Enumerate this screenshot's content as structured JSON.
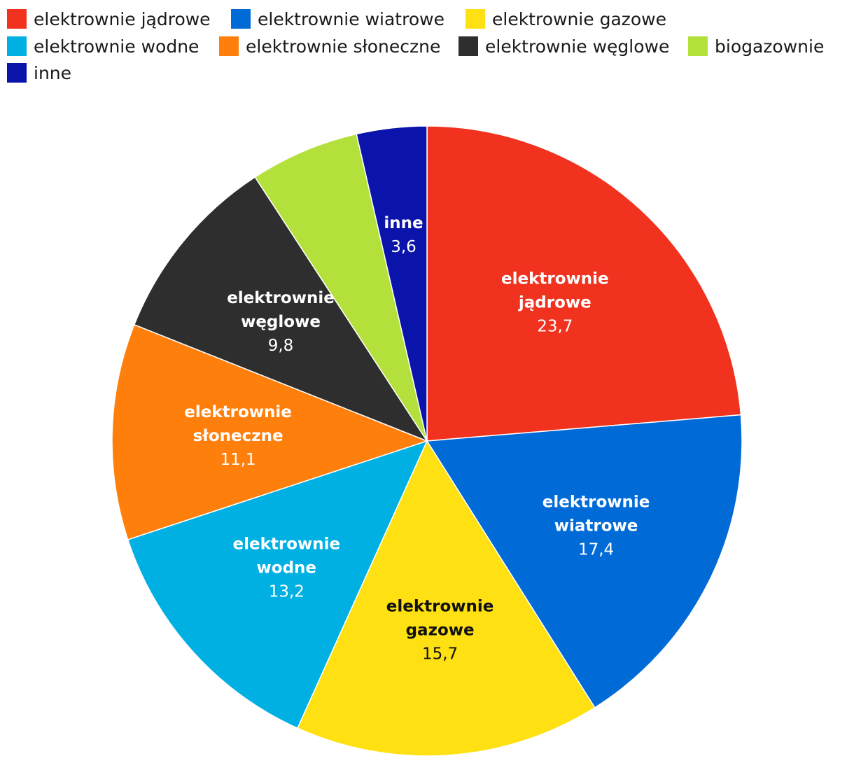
{
  "chart_data": {
    "type": "pie",
    "title": "",
    "legend_position": "top",
    "start_angle": "12 o'clock",
    "direction": "clockwise",
    "slices": [
      {
        "name": "elektrownie jądrowe",
        "label_lines": [
          "elektrownie",
          "jądrowe"
        ],
        "value": 23.7,
        "value_label": "23,7",
        "color": "#f0321e",
        "text_color": "#ffffff"
      },
      {
        "name": "elektrownie wiatrowe",
        "label_lines": [
          "elektrownie",
          "wiatrowe"
        ],
        "value": 17.4,
        "value_label": "17,4",
        "color": "#006bd6",
        "text_color": "#ffffff"
      },
      {
        "name": "elektrownie gazowe",
        "label_lines": [
          "elektrownie",
          "gazowe"
        ],
        "value": 15.7,
        "value_label": "15,7",
        "color": "#ffe012",
        "text_color": "#111111"
      },
      {
        "name": "elektrownie wodne",
        "label_lines": [
          "elektrownie",
          "wodne"
        ],
        "value": 13.2,
        "value_label": "13,2",
        "color": "#00b0e3",
        "text_color": "#ffffff"
      },
      {
        "name": "elektrownie słoneczne",
        "label_lines": [
          "elektrownie",
          "słoneczne"
        ],
        "value": 11.1,
        "value_label": "11,1",
        "color": "#ff7f0c",
        "text_color": "#ffffff"
      },
      {
        "name": "elektrownie węglowe",
        "label_lines": [
          "elektrownie",
          "węglowe"
        ],
        "value": 9.8,
        "value_label": "9,8",
        "color": "#2e2e2e",
        "text_color": "#ffffff"
      },
      {
        "name": "biogazownie",
        "label_lines": [],
        "value": 5.6,
        "value_label": "",
        "color": "#b3e03a",
        "text_color": "#ffffff"
      },
      {
        "name": "inne",
        "label_lines": [
          "inne"
        ],
        "value": 3.6,
        "value_label": "3,6",
        "color": "#0a14aa",
        "text_color": "#ffffff"
      }
    ],
    "legend_order": [
      "elektrownie jądrowe",
      "elektrownie wiatrowe",
      "elektrownie gazowe",
      "elektrownie wodne",
      "elektrownie słoneczne",
      "elektrownie węglowe",
      "biogazownie",
      "inne"
    ]
  }
}
